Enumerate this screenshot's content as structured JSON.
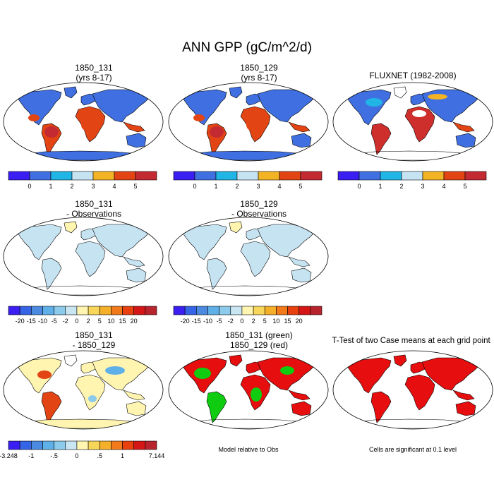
{
  "title": "ANN GPP (gC/m^2/d)",
  "colors": {
    "cmap7": [
      "#3b1ff2",
      "#3f6fe0",
      "#21b5e6",
      "#c6e3f2",
      "#f2b325",
      "#e34414",
      "#c42a32"
    ],
    "cmap13": [
      "#3b1ff2",
      "#3565e6",
      "#4b8ae0",
      "#5fb0e8",
      "#8ccbec",
      "#c9e5f2",
      "#fff5b0",
      "#f7d65a",
      "#f5b02a",
      "#f27a1a",
      "#e8400f",
      "#d41616",
      "#b8242d"
    ],
    "land_low": "#3f6fe0",
    "land_tropics": "#e34414",
    "land_high": "#cf2f2c",
    "diff_land": "#c6e3f2",
    "green": "#0fcc10",
    "red": "#e60e0e",
    "pale_yellow": "#fff5b0"
  },
  "panels": [
    {
      "id": "case1",
      "title": [
        "1850_131",
        "(yrs 8-17)"
      ],
      "style": "mean"
    },
    {
      "id": "case2",
      "title": [
        "1850_129",
        "(yrs 8-17)"
      ],
      "style": "mean"
    },
    {
      "id": "obs",
      "title": [
        "FLUXNET (1982-2008)",
        ""
      ],
      "style": "obs"
    },
    {
      "id": "case1-obs",
      "title": [
        "1850_131",
        "- Observations"
      ],
      "style": "diff"
    },
    {
      "id": "case2-obs",
      "title": [
        "1850_129",
        "- Observations"
      ],
      "style": "diff"
    },
    {
      "id": "case1-case2",
      "title": [
        "1850_131",
        "- 1850_129"
      ],
      "style": "casediff"
    },
    {
      "id": "green-red",
      "title": [
        "1850_131 (green)",
        "1850_129 (red)"
      ],
      "style": "greenred"
    },
    {
      "id": "ttest",
      "title": [
        "T-Test of two Case means at each grid point",
        ""
      ],
      "style": "ttest"
    }
  ],
  "colorbars": [
    {
      "id": "cb1",
      "labels": [
        "0",
        "1",
        "2",
        "3",
        "4",
        "5"
      ]
    },
    {
      "id": "cb2",
      "labels": [
        "0",
        "1",
        "2",
        "3",
        "4",
        "5"
      ]
    },
    {
      "id": "cb3",
      "labels": [
        "0",
        "1",
        "2",
        "3",
        "4",
        "5"
      ]
    },
    {
      "id": "cb4",
      "labels": [
        "-20",
        "-15",
        "-10",
        "-5",
        "-2",
        "0",
        "2",
        "5",
        "10",
        "15",
        "20"
      ]
    },
    {
      "id": "cb5",
      "labels": [
        "-20",
        "-15",
        "-10",
        "-5",
        "-2",
        "0",
        "2",
        "5",
        "10",
        "15",
        "20"
      ]
    },
    {
      "id": "cb6",
      "labels": [
        "-3.248",
        "-1",
        "-.5",
        "0",
        ".5",
        "1",
        "7.144"
      ]
    }
  ],
  "notes": {
    "model_relative": "Model relative to Obs",
    "significance": "Cells are significant at 0.1 level"
  }
}
